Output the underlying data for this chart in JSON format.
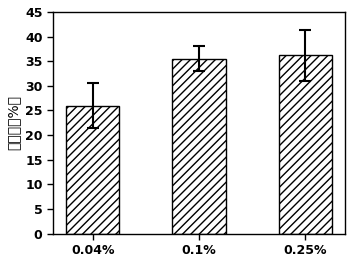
{
  "categories": [
    "0.04%",
    "0.1%",
    "0.25%"
  ],
  "values": [
    26.0,
    35.5,
    36.2
  ],
  "errors": [
    4.5,
    2.5,
    5.2
  ],
  "bar_color": "#ffffff",
  "bar_edgecolor": "#000000",
  "hatch": "////",
  "ylabel": "交联度（%）",
  "xlabel": "",
  "ylim": [
    0,
    45
  ],
  "yticks": [
    0,
    5,
    10,
    15,
    20,
    25,
    30,
    35,
    40,
    45
  ],
  "title": "",
  "bar_width": 0.5,
  "figsize": [
    3.52,
    2.64
  ],
  "dpi": 100,
  "capsize": 4,
  "errorbar_linewidth": 1.5,
  "ylabel_fontsize": 10,
  "tick_fontsize": 9,
  "tick_fontweight": "bold",
  "xtick_fontsize": 9
}
